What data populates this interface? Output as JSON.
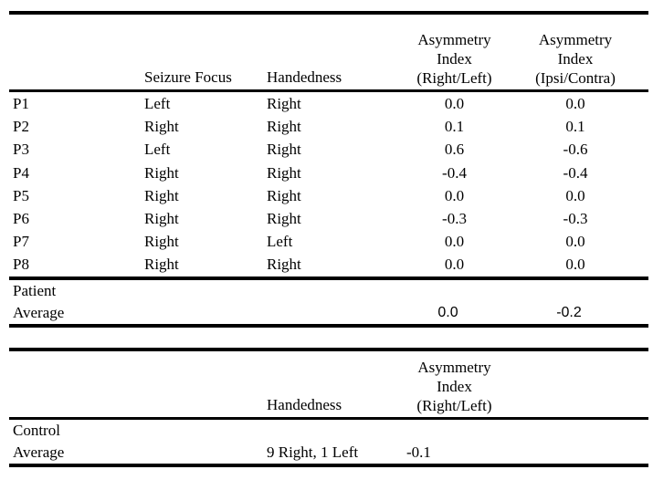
{
  "colors": {
    "background": "#ffffff",
    "text": "#000000",
    "rule": "#000000"
  },
  "table_patients": {
    "headers": {
      "seizure_focus": "Seizure Focus",
      "handedness": "Handedness",
      "ai_rl": {
        "line1": "Asymmetry",
        "line2": "Index",
        "line3": "(Right/Left)"
      },
      "ai_ic": {
        "line1": "Asymmetry",
        "line2": "Index",
        "line3": "(Ipsi/Contra)"
      }
    },
    "rows": [
      {
        "id": "P1",
        "focus": "Left",
        "hand": "Right",
        "ai_rl": "0.0",
        "ai_ic": "0.0"
      },
      {
        "id": "P2",
        "focus": "Right",
        "hand": "Right",
        "ai_rl": "0.1",
        "ai_ic": "0.1"
      },
      {
        "id": "P3",
        "focus": "Left",
        "hand": "Right",
        "ai_rl": "0.6",
        "ai_ic": "-0.6"
      },
      {
        "id": "P4",
        "focus": "Right",
        "hand": "Right",
        "ai_rl": "-0.4",
        "ai_ic": "-0.4"
      },
      {
        "id": "P5",
        "focus": "Right",
        "hand": "Right",
        "ai_rl": "0.0",
        "ai_ic": "0.0"
      },
      {
        "id": "P6",
        "focus": "Right",
        "hand": "Right",
        "ai_rl": "-0.3",
        "ai_ic": "-0.3"
      },
      {
        "id": "P7",
        "focus": "Right",
        "hand": "Left",
        "ai_rl": "0.0",
        "ai_ic": "0.0"
      },
      {
        "id": "P8",
        "focus": "Right",
        "hand": "Right",
        "ai_rl": "0.0",
        "ai_ic": "0.0"
      }
    ],
    "summary": {
      "label_line1": "Patient",
      "label_line2": "Average",
      "ai_rl": "0.0",
      "ai_ic": "-0.2"
    }
  },
  "table_controls": {
    "headers": {
      "handedness": "Handedness",
      "ai_rl": {
        "line1": "Asymmetry",
        "line2": "Index",
        "line3": "(Right/Left)"
      }
    },
    "summary": {
      "label_line1": "Control",
      "label_line2": "Average",
      "handedness": "9 Right, 1 Left",
      "ai_rl": "-0.1"
    }
  }
}
